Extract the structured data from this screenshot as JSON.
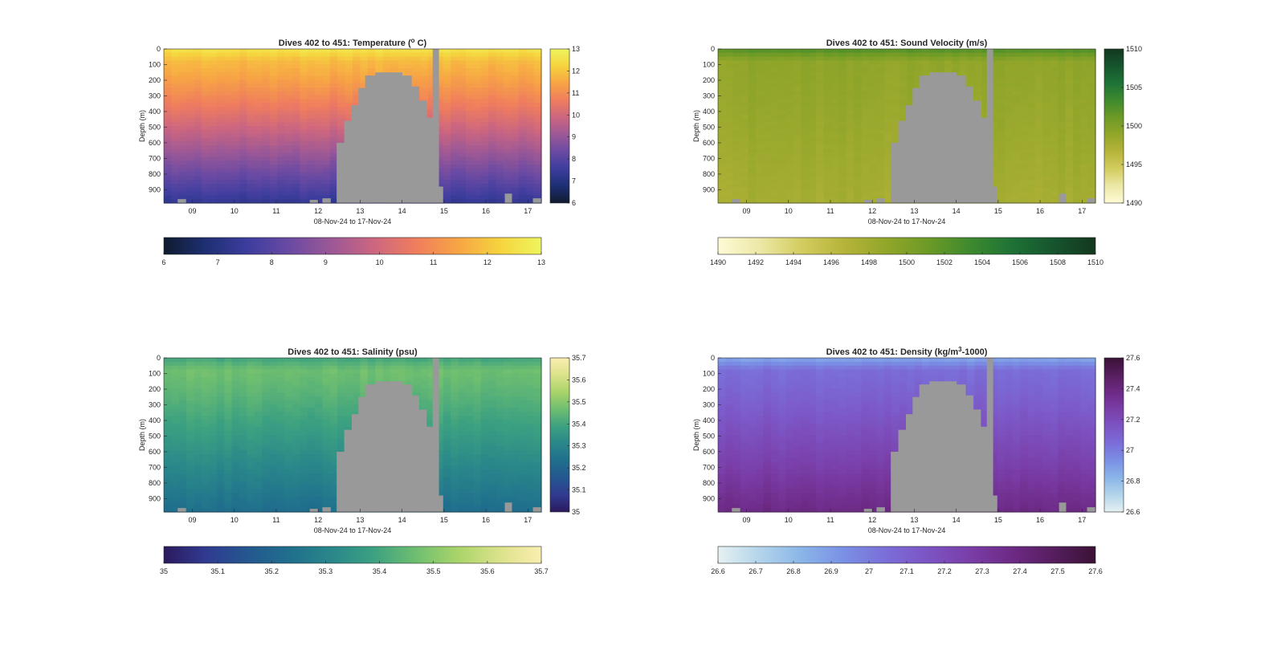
{
  "chart_data": [
    {
      "type": "heatmap",
      "title": "Dives 402 to 451: Temperature (",
      "title_super": "o",
      "title_tail": " C)",
      "xlabel": "08-Nov-24 to 17-Nov-24",
      "ylabel": "Depth (m)",
      "x_ticks": [
        "09",
        "10",
        "11",
        "12",
        "13",
        "14",
        "15",
        "16",
        "17"
      ],
      "x_range": [
        8.32,
        17.32
      ],
      "y_ticks": [
        "0",
        "100",
        "200",
        "300",
        "400",
        "500",
        "600",
        "700",
        "800",
        "900"
      ],
      "y_range": [
        0,
        985
      ],
      "y_reversed": true,
      "colorbar_ticks": [
        "6",
        "7",
        "8",
        "9",
        "10",
        "11",
        "12",
        "13"
      ],
      "clim": [
        6,
        13
      ],
      "colormap": [
        "#0f1b2e",
        "#1e2f73",
        "#3d3d9e",
        "#6a4aa3",
        "#9c5896",
        "#cc6680",
        "#ef7d5e",
        "#f7a445",
        "#f6d33e",
        "#eef55e"
      ],
      "mixed_layer_depth": 80,
      "surface_value": 12.6,
      "mixed_value": 11.8,
      "deep_value": 7.3,
      "missing_color": "#999999"
    },
    {
      "type": "heatmap",
      "title": "Dives 402 to 451: Sound Velocity (m/s)",
      "xlabel": "08-Nov-24 to 17-Nov-24",
      "ylabel": "Depth (m)",
      "x_ticks": [
        "09",
        "10",
        "11",
        "12",
        "13",
        "14",
        "15",
        "16",
        "17"
      ],
      "x_range": [
        8.32,
        17.32
      ],
      "y_ticks": [
        "0",
        "100",
        "200",
        "300",
        "400",
        "500",
        "600",
        "700",
        "800",
        "900"
      ],
      "y_range": [
        0,
        985
      ],
      "y_reversed": true,
      "colorbar_ticks": [
        "1490",
        "1495",
        "1500",
        "1505",
        "1510"
      ],
      "colorbar_ticks_h": [
        "1490",
        "1492",
        "1494",
        "1496",
        "1498",
        "1500",
        "1502",
        "1504",
        "1506",
        "1508",
        "1510"
      ],
      "clim": [
        1490,
        1510
      ],
      "colormap": [
        "#fefbd6",
        "#ece8a6",
        "#d3cc5f",
        "#b6b43a",
        "#92a62a",
        "#6d9a26",
        "#3e8a2e",
        "#1e7236",
        "#16552e",
        "#14371f"
      ],
      "mixed_layer_depth": 80,
      "surface_value": 1502.5,
      "mixed_value": 1499.0,
      "deep_value": 1497.6,
      "missing_color": "#999999"
    },
    {
      "type": "heatmap",
      "title": "Dives 402 to 451: Salinity (psu)",
      "xlabel": "08-Nov-24 to 17-Nov-24",
      "ylabel": "Depth (m)",
      "x_ticks": [
        "09",
        "10",
        "11",
        "12",
        "13",
        "14",
        "15",
        "16",
        "17"
      ],
      "x_range": [
        8.32,
        17.32
      ],
      "y_ticks": [
        "0",
        "100",
        "200",
        "300",
        "400",
        "500",
        "600",
        "700",
        "800",
        "900"
      ],
      "y_range": [
        0,
        985
      ],
      "y_reversed": true,
      "colorbar_ticks": [
        "35",
        "35.1",
        "35.2",
        "35.3",
        "35.4",
        "35.5",
        "35.6",
        "35.7"
      ],
      "clim": [
        35,
        35.7
      ],
      "colormap": [
        "#2b1a5e",
        "#303a90",
        "#24578f",
        "#206f8d",
        "#29878a",
        "#3ca181",
        "#6ebe70",
        "#a9d46a",
        "#dbe28a",
        "#fbeeb0"
      ],
      "mixed_layer_depth": 80,
      "surface_value": 35.4,
      "mixed_value": 35.47,
      "deep_value": 35.23,
      "missing_color": "#999999"
    },
    {
      "type": "heatmap",
      "title": "Dives 402 to 451: Density (kg/m",
      "title_super": "3",
      "title_tail": "-1000)",
      "xlabel": "08-Nov-24 to 17-Nov-24",
      "ylabel": "Depth (m)",
      "x_ticks": [
        "09",
        "10",
        "11",
        "12",
        "13",
        "14",
        "15",
        "16",
        "17"
      ],
      "x_range": [
        8.32,
        17.32
      ],
      "y_ticks": [
        "0",
        "100",
        "200",
        "300",
        "400",
        "500",
        "600",
        "700",
        "800",
        "900"
      ],
      "y_range": [
        0,
        985
      ],
      "y_reversed": true,
      "colorbar_ticks": [
        "26.6",
        "26.8",
        "27",
        "27.2",
        "27.4",
        "27.6"
      ],
      "colorbar_ticks_h": [
        "26.6",
        "26.7",
        "26.8",
        "26.9",
        "27",
        "27.1",
        "27.2",
        "27.3",
        "27.4",
        "27.5",
        "27.6"
      ],
      "clim": [
        26.6,
        27.6
      ],
      "colormap": [
        "#e6f1f2",
        "#b3d4ea",
        "#8ab5e8",
        "#7a90e5",
        "#7b6ed8",
        "#7c54c3",
        "#7a3ea8",
        "#6d2a85",
        "#561e5e",
        "#3a1236"
      ],
      "mixed_layer_depth": 80,
      "surface_value": 26.86,
      "mixed_value": 27.05,
      "deep_value": 27.38,
      "missing_color": "#999999"
    }
  ]
}
